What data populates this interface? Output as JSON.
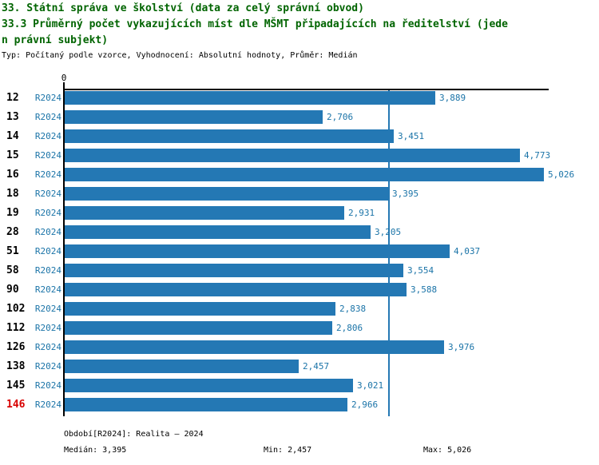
{
  "header": {
    "title_line1": "33. Státní správa ve školství (data za celý správní obvod)",
    "title_line2": "33.3 Průměrný počet vykazujících míst dle MŠMT připadajících na ředitelství (jede",
    "title_line3": "n právní subjekt)",
    "subtitle": "Typ: Počítaný podle vzorce, Vyhodnocení: Absolutní hodnoty, Průměr: Medián"
  },
  "chart_data": {
    "type": "bar",
    "orientation": "horizontal",
    "title": "33.3 Průměrný počet vykazujících míst dle MŠMT připadajících na ředitelství (jeden právní subjekt)",
    "categories": [
      "12",
      "13",
      "14",
      "15",
      "16",
      "18",
      "19",
      "28",
      "51",
      "58",
      "90",
      "102",
      "112",
      "126",
      "138",
      "145",
      "146"
    ],
    "series": [
      {
        "name": "R2024",
        "values": [
          3889,
          2706,
          3451,
          4773,
          5026,
          3395,
          2931,
          3205,
          4037,
          3554,
          3588,
          2838,
          2806,
          3976,
          2457,
          3021,
          2966
        ],
        "value_labels": [
          "3,889",
          "2,706",
          "3,451",
          "4,773",
          "5,026",
          "3,395",
          "2,931",
          "3,205",
          "4,037",
          "3,554",
          "3,588",
          "2,838",
          "2,806",
          "3,976",
          "2,457",
          "3,021",
          "2,966"
        ]
      }
    ],
    "axis_origin_label": "0",
    "xlim": [
      0,
      5085
    ],
    "median_value": 3395,
    "highlighted_category": "146",
    "grid": "median-line-only",
    "legend_position": "none",
    "colors": {
      "bar": "#2478b4",
      "median_line": "#2478b4",
      "text_blue": "#1b74a8",
      "highlight_red": "#d80000",
      "axis_black": "#000000",
      "title_green": "#006400"
    }
  },
  "footer": {
    "period": "Období[R2024]: Realita – 2024",
    "median": "Medián: 3,395",
    "min": "Min: 2,457",
    "max": "Max: 5,026"
  }
}
